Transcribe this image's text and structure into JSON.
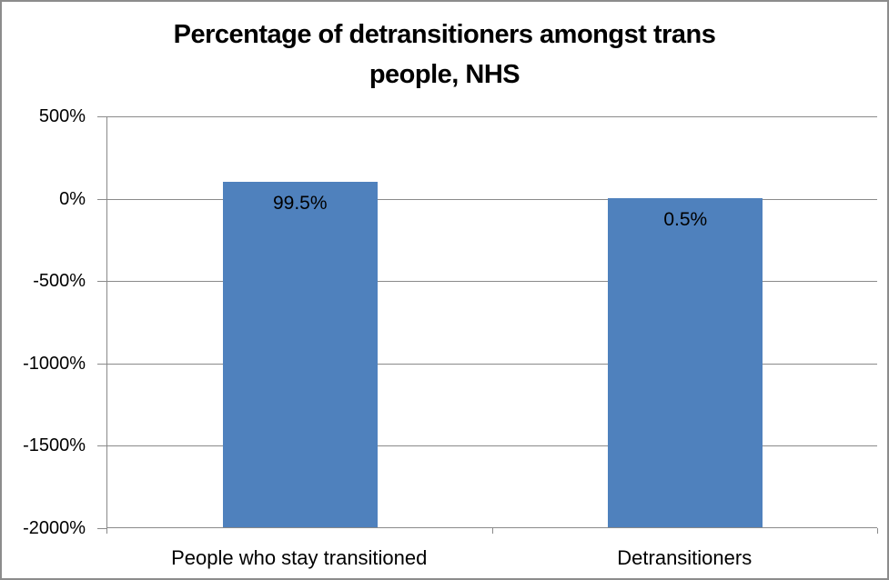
{
  "chart_data": {
    "type": "bar",
    "title": "Percentage of detransitioners amongst trans people, NHS",
    "title_lines": [
      "Percentage of detransitioners amongst trans",
      "people, NHS"
    ],
    "categories": [
      "People who stay transitioned",
      "Detransitioners"
    ],
    "values": [
      99.5,
      0.5
    ],
    "data_labels": [
      "99.5%",
      "0.5%"
    ],
    "xlabel": "",
    "ylabel": "",
    "y_axis": {
      "tick_labels": [
        "500%",
        "0%",
        "-500%",
        "-1000%",
        "-1500%",
        "-2000%"
      ],
      "tick_values": [
        500,
        0,
        -500,
        -1000,
        -1500,
        -2000
      ],
      "min": -2000,
      "max": 500,
      "unit": "%"
    },
    "bar_baseline": -2000,
    "grid": true,
    "legend": "none",
    "colors": {
      "bar": "#4F81BD",
      "grid": "#8A8A8A",
      "axis": "#8A8A8A",
      "text": "#000000",
      "background": "#FFFFFF",
      "frame_border": "#8C8C8C"
    }
  }
}
